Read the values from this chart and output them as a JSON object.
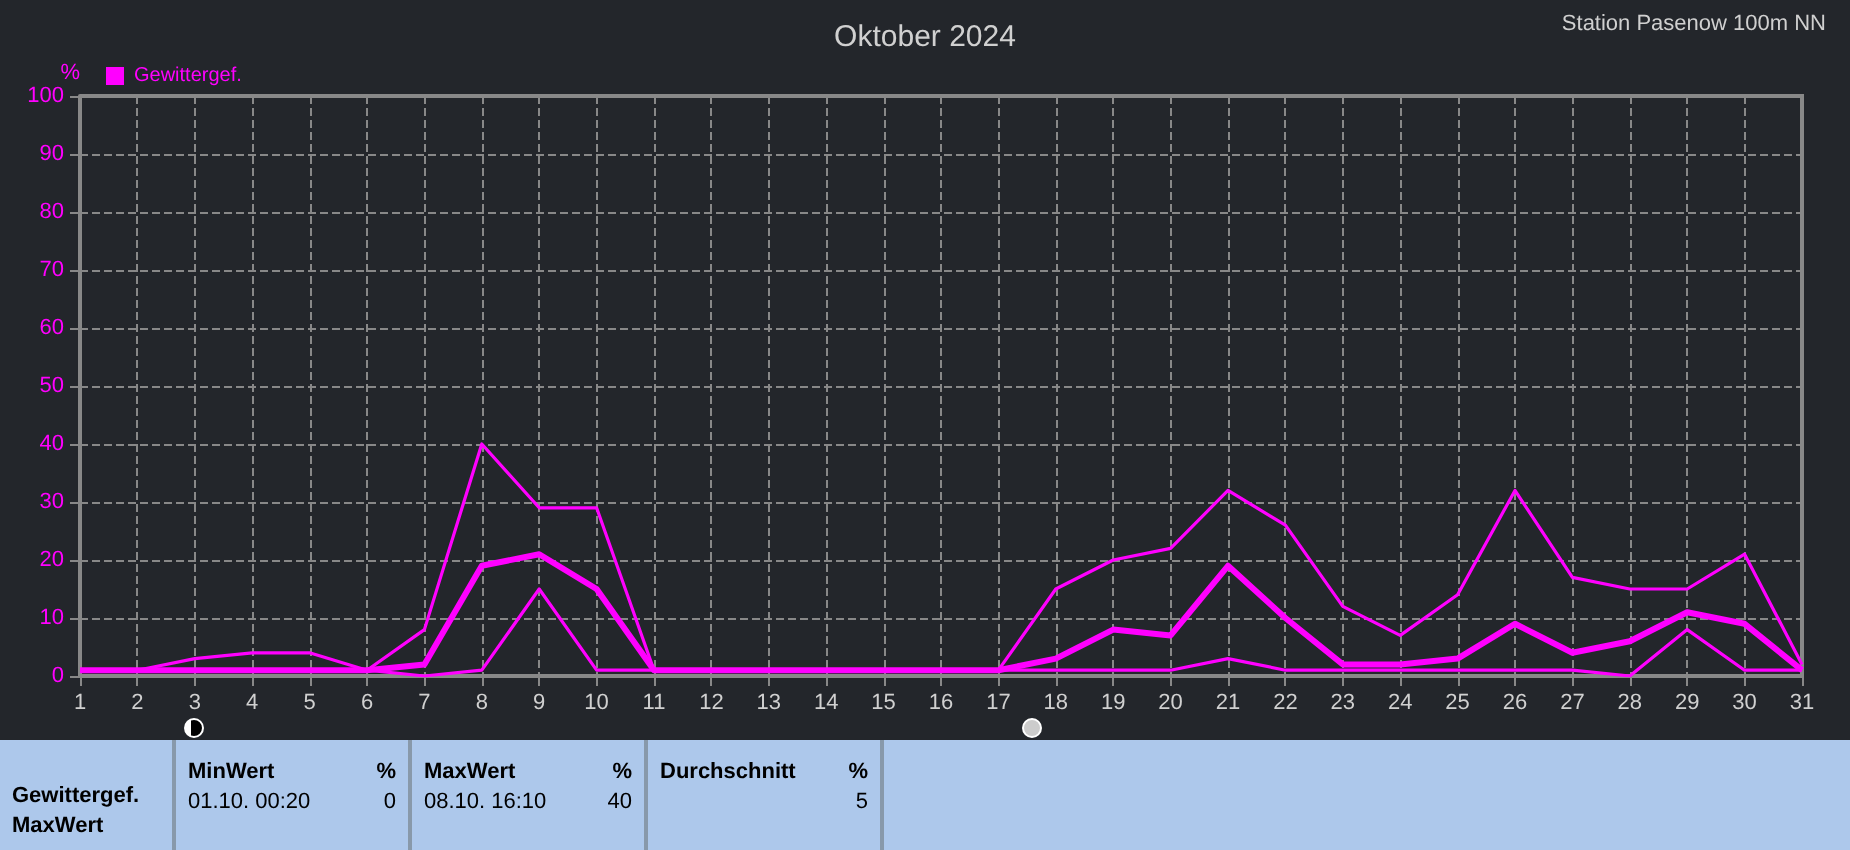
{
  "chart_data": {
    "type": "line",
    "title": "Oktober 2024",
    "ylabel": "%",
    "annotations": [
      "Station Pasenow 100m NN",
      "Gewittergef.",
      "MaxWert",
      "MinWert",
      "%",
      "01.10.  00:20",
      "0",
      "MaxWert",
      "%",
      "08.10.  16:10",
      "40",
      "Durchschnitt",
      "%",
      "5"
    ],
    "x": [
      1,
      2,
      3,
      4,
      5,
      6,
      7,
      8,
      9,
      10,
      11,
      12,
      13,
      14,
      15,
      16,
      17,
      18,
      19,
      20,
      21,
      22,
      23,
      24,
      25,
      26,
      27,
      28,
      29,
      30,
      31
    ],
    "series": [
      {
        "color": "#ff00ff",
        "values": [
          1,
          1,
          3,
          4,
          4,
          1,
          8,
          40,
          29,
          29,
          1,
          1,
          1,
          1,
          1,
          1,
          1,
          15,
          20,
          22,
          32,
          26,
          12,
          7,
          14,
          32,
          17,
          15,
          15,
          21,
          2
        ]
      },
      {
        "name": "Gewittergef.",
        "color": "#ff00ff",
        "values": [
          1,
          1,
          1,
          1,
          1,
          1,
          2,
          19,
          21,
          15,
          1,
          1,
          1,
          1,
          1,
          1,
          1,
          3,
          8,
          7,
          19,
          10,
          2,
          2,
          3,
          9,
          4,
          6,
          11,
          9,
          1
        ]
      },
      {
        "color": "#ff00ff",
        "values": [
          1,
          1,
          1,
          1,
          1,
          1,
          0,
          1,
          15,
          1,
          1,
          1,
          1,
          1,
          1,
          1,
          1,
          1,
          1,
          1,
          3,
          1,
          1,
          1,
          1,
          1,
          1,
          0,
          8,
          1,
          1
        ]
      }
    ],
    "xlim": [
      1,
      31
    ],
    "xticks": [
      1,
      2,
      3,
      4,
      5,
      6,
      7,
      8,
      9,
      10,
      11,
      12,
      13,
      14,
      15,
      16,
      17,
      18,
      19,
      20,
      21,
      22,
      23,
      24,
      25,
      26,
      27,
      28,
      29,
      30,
      31
    ],
    "ylim": [
      0,
      100
    ],
    "yticks": [
      0,
      10,
      20,
      30,
      40,
      50,
      60,
      70,
      80,
      90,
      100
    ],
    "grid": true,
    "legend": "top left",
    "marker": "none",
    "line_style": "solid"
  }
}
